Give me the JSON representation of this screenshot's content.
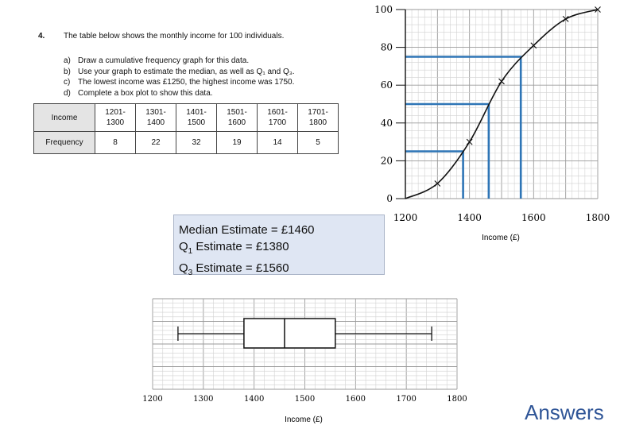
{
  "question": {
    "number": "4.",
    "intro": "The table below shows the monthly income for 100 individuals.",
    "tasks": [
      {
        "label": "a)",
        "text": "Draw a cumulative frequency graph for this data."
      },
      {
        "label": "b)",
        "text": "Use your graph to estimate the median, as well as Q₁ and Q₃."
      },
      {
        "label": "c)",
        "text": "The lowest income was £1250, the highest income was 1750."
      },
      {
        "label": "d)",
        "text": "Complete a box plot to show this data."
      }
    ]
  },
  "table": {
    "row1_header": "Income",
    "row2_header": "Frequency",
    "columns": [
      {
        "line1": "1201-",
        "line2": "1300",
        "frequency": "8"
      },
      {
        "line1": "1301-",
        "line2": "1400",
        "frequency": "22"
      },
      {
        "line1": "1401-",
        "line2": "1500",
        "frequency": "32"
      },
      {
        "line1": "1501-",
        "line2": "1600",
        "frequency": "19"
      },
      {
        "line1": "1601-",
        "line2": "1700",
        "frequency": "14"
      },
      {
        "line1": "1701-",
        "line2": "1800",
        "frequency": "5"
      }
    ]
  },
  "estimates": {
    "median": "Median Estimate = £1460",
    "q1_prefix": "Q",
    "q1_sub": "1",
    "q1_rest": " Estimate = £1380",
    "q3_prefix": "Q",
    "q3_sub": "3",
    "q3_rest": " Estimate = £1560"
  },
  "answers_label": "Answers",
  "chart_data": [
    {
      "type": "line",
      "title": "",
      "xlabel": "Income (£)",
      "ylabel": "",
      "xlim": [
        1200,
        1800
      ],
      "ylim": [
        0,
        100
      ],
      "x_ticks": [
        "1200",
        "1400",
        "1600",
        "1800"
      ],
      "y_ticks": [
        "0",
        "20",
        "40",
        "60",
        "80",
        "100"
      ],
      "grid": true,
      "points": [
        {
          "x": 1200,
          "y": 0
        },
        {
          "x": 1300,
          "y": 8
        },
        {
          "x": 1400,
          "y": 30
        },
        {
          "x": 1500,
          "y": 62
        },
        {
          "x": 1600,
          "y": 81
        },
        {
          "x": 1700,
          "y": 95
        },
        {
          "x": 1800,
          "y": 100
        }
      ],
      "reference_lines": [
        {
          "y": 25,
          "x": 1380
        },
        {
          "y": 50,
          "x": 1460
        },
        {
          "y": 75,
          "x": 1560
        }
      ],
      "line_color": "#111111",
      "reference_color": "#2e75b6"
    },
    {
      "type": "box",
      "xlabel": "Income (£)",
      "xlim": [
        1200,
        1800
      ],
      "x_ticks": [
        "1200",
        "1300",
        "1400",
        "1500",
        "1600",
        "1700",
        "1800"
      ],
      "min": 1250,
      "q1": 1380,
      "median": 1460,
      "q3": 1560,
      "max": 1750,
      "grid": true
    }
  ]
}
